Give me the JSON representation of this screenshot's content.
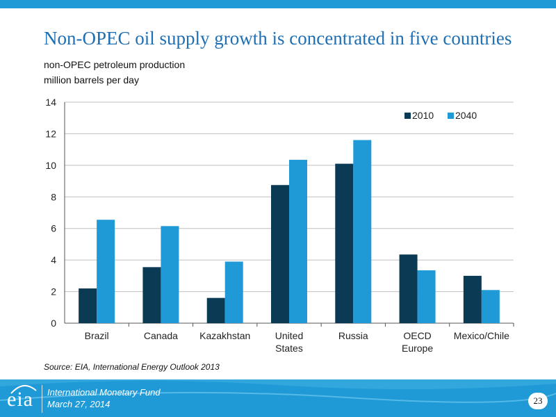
{
  "title": "Non-OPEC oil supply growth is concentrated in five countries",
  "subtitle_line1": "non-OPEC petroleum production",
  "subtitle_line2": "million barrels per day",
  "source": "Source: EIA, International Energy Outlook 2013",
  "footer": {
    "logo_text": "eia",
    "org": "International Monetary Fund",
    "date": "March 27, 2014",
    "page": "23"
  },
  "colors": {
    "brand": "#1f9ad6",
    "title": "#1f6fb3",
    "series_2010": "#0b3a55",
    "series_2040": "#1f9ad6"
  },
  "chart_data": {
    "type": "bar",
    "categories": [
      [
        "Brazil"
      ],
      [
        "Canada"
      ],
      [
        "Kazakhstan"
      ],
      [
        "United",
        "States"
      ],
      [
        "Russia"
      ],
      [
        "OECD",
        "Europe"
      ],
      [
        "Mexico/Chile"
      ]
    ],
    "series": [
      {
        "name": "2010",
        "color": "#0b3a55",
        "values": [
          2.2,
          3.55,
          1.6,
          8.75,
          10.1,
          4.35,
          3.0
        ]
      },
      {
        "name": "2040",
        "color": "#1f9ad6",
        "values": [
          6.55,
          6.15,
          3.9,
          10.35,
          11.6,
          3.35,
          2.1
        ]
      }
    ],
    "yticks": [
      0,
      2,
      4,
      6,
      8,
      10,
      12,
      14
    ],
    "ylim": [
      0,
      14
    ],
    "grid": true,
    "legend": "top-right"
  }
}
